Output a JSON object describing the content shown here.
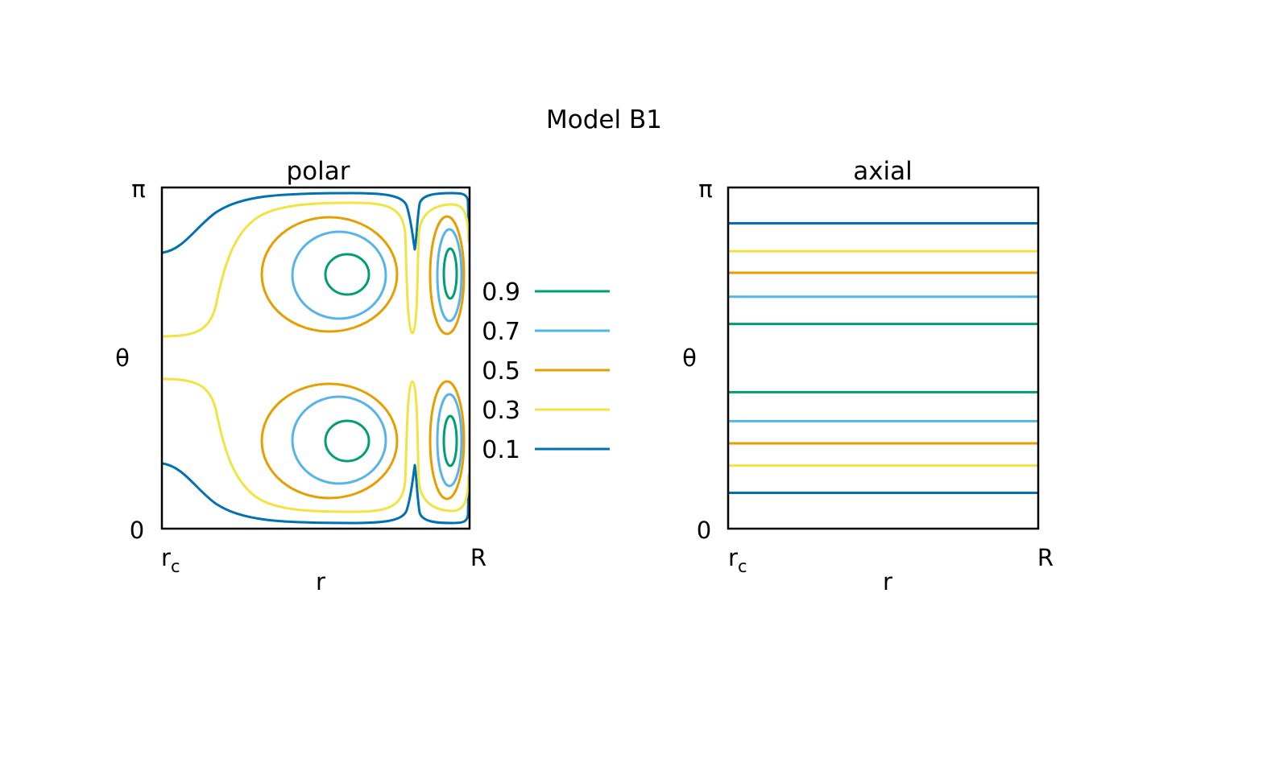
{
  "figure": {
    "title": "Model B1"
  },
  "legend": {
    "placement": "between-panels",
    "entries": [
      {
        "label": "0.9",
        "color": "#009e73"
      },
      {
        "label": "0.7",
        "color": "#56b4e9"
      },
      {
        "label": "0.5",
        "color": "#e69f00"
      },
      {
        "label": "0.3",
        "color": "#f0e442"
      },
      {
        "label": "0.1",
        "color": "#0072b2"
      }
    ]
  },
  "chart_data": [
    {
      "type": "contour",
      "title": "polar",
      "xlabel": "r",
      "ylabel": "θ",
      "xticks": [
        "r",
        "R"
      ],
      "xtick_subscript": "c",
      "yticks": [
        "0",
        "π"
      ],
      "ylim": [
        0,
        1
      ],
      "grid": false,
      "levels": [
        0.9,
        0.7,
        0.5,
        0.3,
        0.1
      ],
      "description": "two stacked cells of closed contours in the meridional plane, each with a main vortex near mid-radius and a secondary vortex near r = R"
    },
    {
      "type": "line",
      "title": "axial",
      "xlabel": "r",
      "ylabel": "θ",
      "xticks": [
        "r",
        "R"
      ],
      "xtick_subscript": "c",
      "yticks": [
        "0",
        "π"
      ],
      "ylim": [
        0,
        1
      ],
      "grid": false,
      "series": [
        {
          "level": "0.1",
          "color": "#0072b2",
          "y": [
            0.895,
            0.105
          ]
        },
        {
          "level": "0.3",
          "color": "#f0e442",
          "y": [
            0.813,
            0.185
          ]
        },
        {
          "level": "0.5",
          "color": "#e69f00",
          "y": [
            0.75,
            0.25
          ]
        },
        {
          "level": "0.7",
          "color": "#56b4e9",
          "y": [
            0.68,
            0.315
          ]
        },
        {
          "level": "0.9",
          "color": "#009e73",
          "y": [
            0.6,
            0.4
          ]
        }
      ]
    }
  ]
}
